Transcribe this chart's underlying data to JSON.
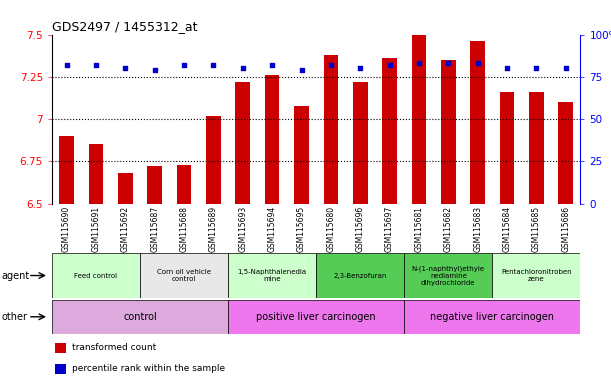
{
  "title": "GDS2497 / 1455312_at",
  "samples": [
    "GSM115690",
    "GSM115691",
    "GSM115692",
    "GSM115687",
    "GSM115688",
    "GSM115689",
    "GSM115693",
    "GSM115694",
    "GSM115695",
    "GSM115680",
    "GSM115696",
    "GSM115697",
    "GSM115681",
    "GSM115682",
    "GSM115683",
    "GSM115684",
    "GSM115685",
    "GSM115686"
  ],
  "transformed_count": [
    6.9,
    6.85,
    6.68,
    6.72,
    6.73,
    7.02,
    7.22,
    7.26,
    7.08,
    7.38,
    7.22,
    7.36,
    7.5,
    7.35,
    7.46,
    7.16,
    7.16,
    7.1
  ],
  "percentile_rank": [
    82,
    82,
    80,
    79,
    82,
    82,
    80,
    82,
    79,
    82,
    80,
    82,
    83,
    83,
    83,
    80,
    80,
    80
  ],
  "ylim": [
    6.5,
    7.5
  ],
  "yticks": [
    6.5,
    6.75,
    7.0,
    7.25,
    7.5
  ],
  "ytick_labels": [
    "6.5",
    "6.75",
    "7",
    "7.25",
    "7.5"
  ],
  "y2ticks": [
    0,
    25,
    50,
    75,
    100
  ],
  "y2labels": [
    "0",
    "25",
    "50",
    "75",
    "100%"
  ],
  "bar_color": "#cc0000",
  "dot_color": "#0000cc",
  "agent_groups": [
    {
      "label": "Feed control",
      "start": 0,
      "end": 3,
      "color": "#ccffcc"
    },
    {
      "label": "Corn oil vehicle\ncontrol",
      "start": 3,
      "end": 6,
      "color": "#e8e8e8"
    },
    {
      "label": "1,5-Naphthalenedia\nmine",
      "start": 6,
      "end": 9,
      "color": "#ccffcc"
    },
    {
      "label": "2,3-Benzofuran",
      "start": 9,
      "end": 12,
      "color": "#55cc55"
    },
    {
      "label": "N-(1-naphthyl)ethyle\nnediamine\ndihydrochloride",
      "start": 12,
      "end": 15,
      "color": "#55cc55"
    },
    {
      "label": "Pentachloronitroben\nzene",
      "start": 15,
      "end": 18,
      "color": "#ccffcc"
    }
  ],
  "other_groups": [
    {
      "label": "control",
      "start": 0,
      "end": 6,
      "color": "#ddaadd"
    },
    {
      "label": "positive liver carcinogen",
      "start": 6,
      "end": 12,
      "color": "#ee77ee"
    },
    {
      "label": "negative liver carcinogen",
      "start": 12,
      "end": 18,
      "color": "#ee77ee"
    }
  ],
  "dotted_lines": [
    6.75,
    7.0,
    7.25
  ],
  "legend_items": [
    {
      "label": "transformed count",
      "color": "#cc0000"
    },
    {
      "label": "percentile rank within the sample",
      "color": "#0000cc"
    }
  ],
  "xlabels_bg": "#d8d8d8",
  "chart_bg": "#ffffff"
}
